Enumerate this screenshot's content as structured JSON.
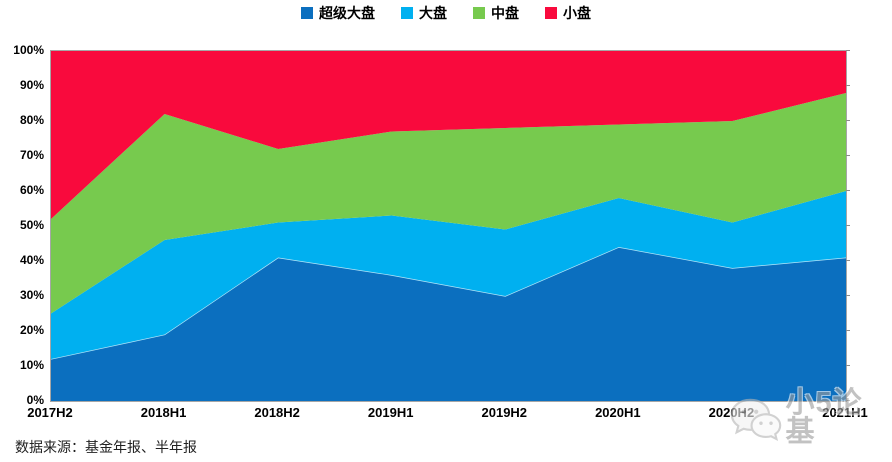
{
  "chart_data": {
    "type": "area",
    "stacked": true,
    "percent_stacked": true,
    "title": "",
    "xlabel": "",
    "ylabel": "",
    "ylim": [
      0,
      100
    ],
    "grid": false,
    "legend_position": "top-center",
    "categories": [
      "2017H2",
      "2018H1",
      "2018H2",
      "2019H1",
      "2019H2",
      "2020H1",
      "2020H2",
      "2021H1"
    ],
    "y_ticks": [
      "0%",
      "10%",
      "20%",
      "30%",
      "40%",
      "50%",
      "60%",
      "70%",
      "80%",
      "90%",
      "100%"
    ],
    "series": [
      {
        "name": "超级大盘",
        "key": "super-large-cap",
        "color": "#0b6fbf",
        "values": [
          12,
          19,
          41,
          36,
          30,
          44,
          38,
          41
        ]
      },
      {
        "name": "大盘",
        "key": "large-cap",
        "color": "#00b0f0",
        "values": [
          13,
          27,
          10,
          17,
          19,
          14,
          13,
          19
        ]
      },
      {
        "name": "中盘",
        "key": "mid-cap",
        "color": "#77ca4e",
        "values": [
          27,
          36,
          21,
          24,
          29,
          21,
          29,
          28
        ]
      },
      {
        "name": "小盘",
        "key": "small-cap",
        "color": "#f90a3d",
        "values": [
          48,
          18,
          28,
          23,
          22,
          21,
          20,
          12
        ]
      }
    ],
    "cumulative_tops_percent": {
      "超级大盘": [
        12,
        19,
        41,
        36,
        30,
        44,
        38,
        41
      ],
      "大盘": [
        25,
        46,
        51,
        53,
        49,
        58,
        51,
        60
      ],
      "中盘": [
        52,
        82,
        72,
        77,
        78,
        79,
        80,
        88
      ],
      "小盘": [
        100,
        100,
        100,
        100,
        100,
        100,
        100,
        100
      ]
    }
  },
  "source": {
    "label": "数据来源：基金年报、半年报"
  },
  "watermark": {
    "text": "小5论基",
    "icon": "wechat-icon"
  },
  "style": {
    "axis_border_color": "#a6a6a6",
    "blue_top_separator_color": "#b3e6f9"
  }
}
